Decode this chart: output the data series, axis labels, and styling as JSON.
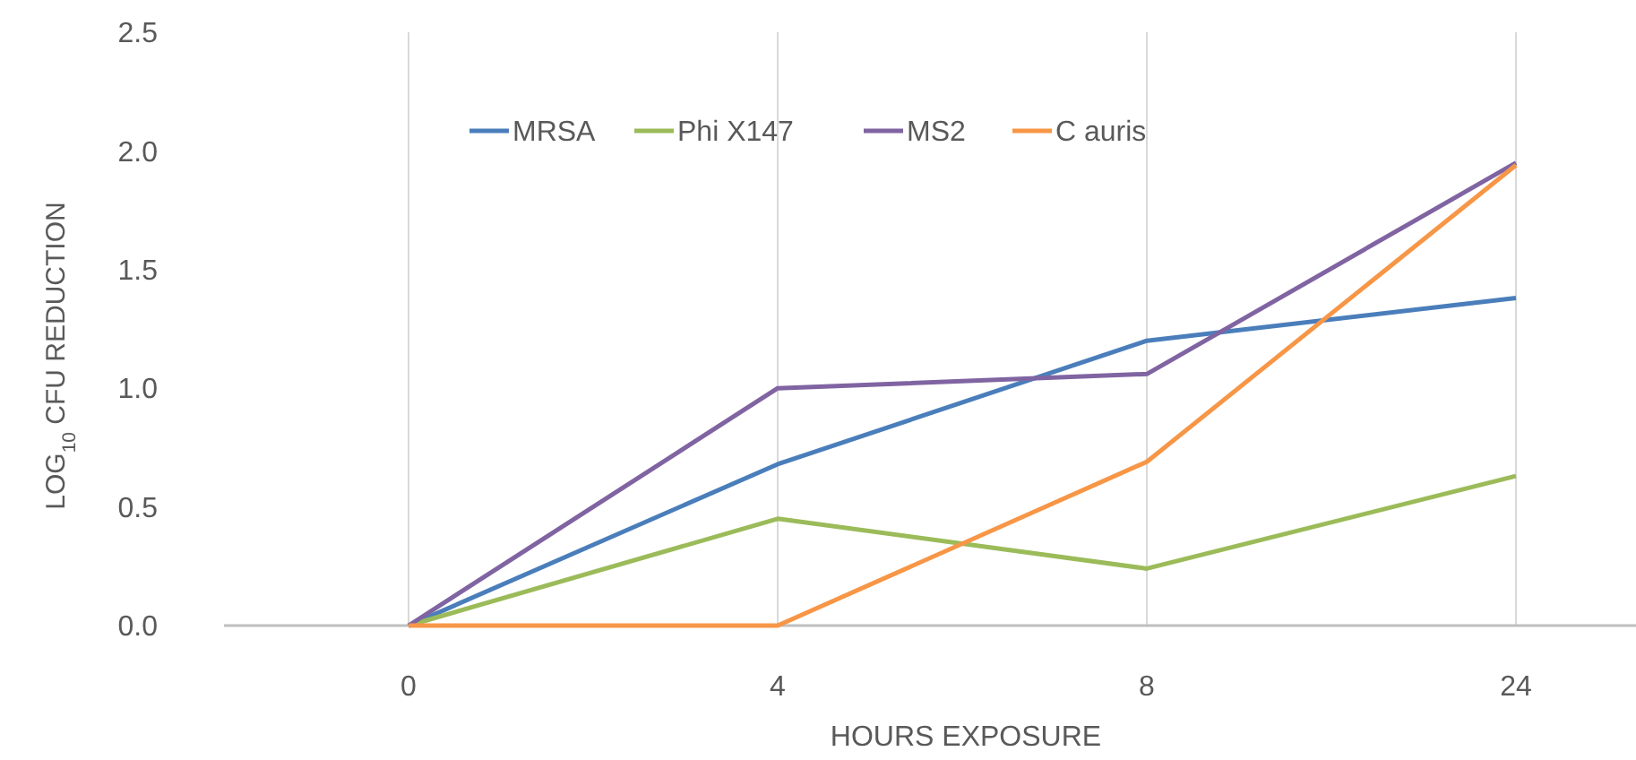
{
  "chart_data": {
    "type": "line",
    "xlabel": "HOURS EXPOSURE",
    "ylabel": "LOG$_{10}$ CFU REDUCTION",
    "categories": [
      "0",
      "4",
      "8",
      "24"
    ],
    "series": [
      {
        "name": "MRSA",
        "color": "#4a7ebb",
        "values": [
          0,
          0.68,
          1.2,
          1.38
        ]
      },
      {
        "name": "Phi X147",
        "color": "#9bbb59",
        "values": [
          0,
          0.45,
          0.24,
          0.63
        ]
      },
      {
        "name": "MS2",
        "color": "#8064a2",
        "values": [
          0,
          1.0,
          1.06,
          1.95
        ]
      },
      {
        "name": "C auris",
        "color": "#f79646",
        "values": [
          0,
          0,
          0.69,
          1.94
        ]
      }
    ],
    "ylim": [
      0,
      2.5
    ],
    "yticks": [
      {
        "value": 0,
        "label": "0.0"
      },
      {
        "value": 0.5,
        "label": "0.5"
      },
      {
        "value": 1,
        "label": "1.0"
      },
      {
        "value": 1.5,
        "label": "1.5"
      },
      {
        "value": 2,
        "label": "2.0"
      },
      {
        "value": 2.5,
        "label": "2.5"
      }
    ],
    "grid": "x",
    "legend": "top",
    "marker": "none",
    "line_style": "solid"
  }
}
